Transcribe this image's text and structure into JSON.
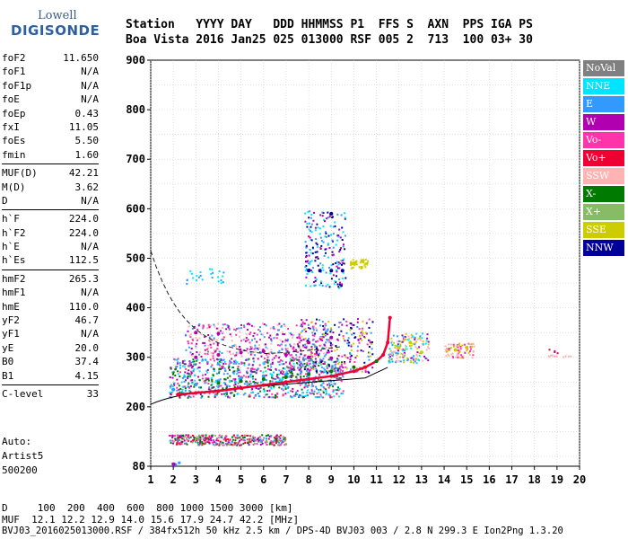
{
  "logo": {
    "line1": "Lowell",
    "line2": "DIGISONDE"
  },
  "header": {
    "line1": "Station   YYYY DAY   DDD HHMMSS P1  FFS S  AXN  PPS IGA PS",
    "line2": "Boa Vista 2016 Jan25 025 013000 RSF 005 2  713  100 03+ 30"
  },
  "params": {
    "group1": [
      [
        "foF2",
        "11.650"
      ],
      [
        "foF1",
        "N/A"
      ],
      [
        "foF1p",
        "N/A"
      ],
      [
        "foE",
        "N/A"
      ],
      [
        "foEp",
        "0.43"
      ],
      [
        "fxI",
        "11.05"
      ],
      [
        "foEs",
        "5.50"
      ],
      [
        "fmin",
        "1.60"
      ]
    ],
    "group2": [
      [
        "MUF(D)",
        "42.21"
      ],
      [
        "M(D)",
        "3.62"
      ],
      [
        "D",
        "N/A"
      ]
    ],
    "group3": [
      [
        "h`F",
        "224.0"
      ],
      [
        "h`F2",
        "224.0"
      ],
      [
        "h`E",
        "N/A"
      ],
      [
        "h`Es",
        "112.5"
      ]
    ],
    "group4": [
      [
        "hmF2",
        "265.3"
      ],
      [
        "hmF1",
        "N/A"
      ],
      [
        "hmE",
        "110.0"
      ],
      [
        "yF2",
        "46.7"
      ],
      [
        "yF1",
        "N/A"
      ],
      [
        "yE",
        "20.0"
      ],
      [
        "B0",
        "37.4"
      ],
      [
        "B1",
        "4.15"
      ]
    ],
    "group5": [
      [
        "C-level",
        "33"
      ]
    ]
  },
  "auto": {
    "line1": "Auto:",
    "line2": "Artist5",
    "line3": "500200"
  },
  "footer": {
    "line1": "D     100  200  400  600  800 1000 1500 3000 [km]",
    "line2": "MUF  12.1 12.2 12.9 14.0 15.6 17.9 24.7 42.2 [MHz]",
    "line3": "BVJ03_2016025013000.RSF / 384fx512h 50 kHz 2.5 km / DPS-4D BVJ03 003 / 2.8 N 299.3 E Ion2Png 1.3.20"
  },
  "legend": [
    {
      "label": "NoVal",
      "color": "#808080"
    },
    {
      "label": "NNE",
      "color": "#00e5ff"
    },
    {
      "label": "E",
      "color": "#3399ff"
    },
    {
      "label": "W",
      "color": "#b000b0"
    },
    {
      "label": "Vo-",
      "color": "#ff33aa"
    },
    {
      "label": "Vo+",
      "color": "#ee0033"
    },
    {
      "label": "SSW",
      "color": "#ffb3b3"
    },
    {
      "label": "X-",
      "color": "#007a00"
    },
    {
      "label": "X+",
      "color": "#88bb66"
    },
    {
      "label": "SSE",
      "color": "#cccc00"
    },
    {
      "label": "NNW",
      "color": "#000099"
    }
  ],
  "chart_data": {
    "type": "scatter",
    "xlim": [
      1,
      20
    ],
    "ylim": [
      80,
      900
    ],
    "xticks": [
      "1",
      "2",
      "3",
      "4",
      "5",
      "6",
      "7",
      "8",
      "9",
      "10",
      "11",
      "12",
      "13",
      "14",
      "15",
      "16",
      "17",
      "18",
      "19",
      "20"
    ],
    "yticks": [
      "80",
      "200",
      "300",
      "400",
      "500",
      "600",
      "700",
      "800",
      "900"
    ],
    "grid": true,
    "series": [
      {
        "name": "Vo+",
        "color": "#ee0033",
        "x": [
          2.2,
          3.0,
          4.0,
          5.0,
          6.0,
          7.0,
          8.0,
          9.0,
          10.0,
          10.5,
          11.0,
          11.3,
          11.5,
          11.6
        ],
        "y": [
          225,
          228,
          232,
          238,
          244,
          250,
          256,
          262,
          272,
          280,
          292,
          305,
          330,
          380
        ]
      },
      {
        "name": "E",
        "color": "#3399ff",
        "x": [
          2.0,
          3.0,
          4.0,
          5.0,
          6.0,
          7.0,
          8.0
        ],
        "y": [
          235,
          245,
          252,
          258,
          262,
          265,
          268
        ]
      },
      {
        "name": "W",
        "color": "#b000b0",
        "x": [
          3.0,
          4.0,
          5.0,
          6.0,
          7.0,
          8.0,
          9.0,
          3.0,
          4.0,
          8.0,
          9.0
        ],
        "y": [
          300,
          305,
          310,
          312,
          305,
          300,
          298,
          350,
          348,
          330,
          340
        ]
      },
      {
        "name": "X-",
        "color": "#007a00",
        "x": [
          4.0,
          5.0,
          6.0,
          7.0,
          8.0,
          9.0,
          10.0,
          11.0
        ],
        "y": [
          248,
          252,
          256,
          260,
          266,
          272,
          280,
          292
        ]
      },
      {
        "name": "SSE",
        "color": "#cccc00",
        "x": [
          12.0,
          12.5,
          13.0,
          14.5,
          15.0,
          10.0,
          10.4
        ],
        "y": [
          320,
          330,
          310,
          315,
          320,
          490,
          495
        ]
      },
      {
        "name": "NNW",
        "color": "#000099",
        "x": [
          8.0,
          8.5,
          9.0,
          9.5,
          9.0
        ],
        "y": [
          475,
          475,
          475,
          475,
          590
        ]
      }
    ]
  }
}
